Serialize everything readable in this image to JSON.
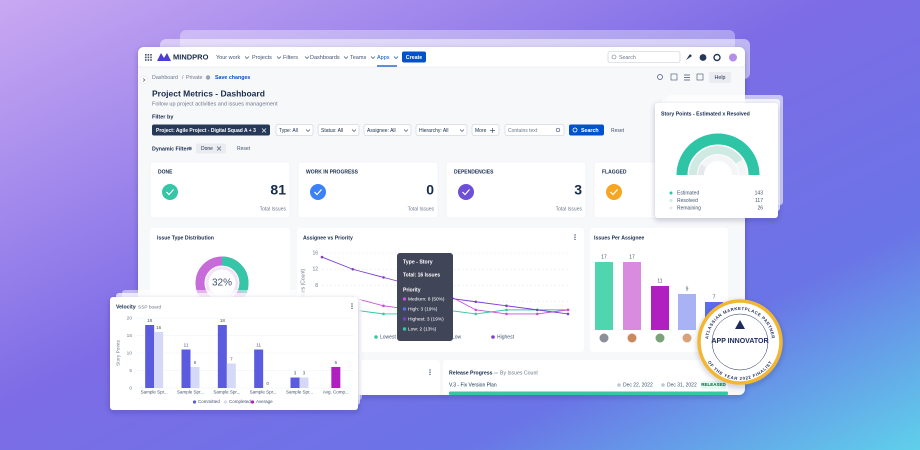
{
  "nav": {
    "brand": "MINDPRO",
    "items": [
      "Your work",
      "Projects",
      "Filters",
      "Dashboards",
      "Teams",
      "Apps"
    ],
    "create": "Create",
    "search": "Search",
    "help": "Help"
  },
  "breadcrumb": {
    "items": [
      "Dashboard",
      "Private"
    ],
    "separator": "/",
    "save": "Save changes"
  },
  "header": {
    "title": "Project Metrics - Dashboard",
    "subtitle": "Follow up project activities and issues management"
  },
  "filters": {
    "label": "Filter by",
    "project": "Project: Agile Project - Digital Squad A + 3",
    "items": [
      "Type: All",
      "Status: All",
      "Assignee: All",
      "Hierarchy: All"
    ],
    "more": "More",
    "text_placeholder": "Contains text",
    "search": "Search",
    "reset": "Reset",
    "dynamic_label": "Dynamic Filter",
    "dynamic_chip": "Done",
    "dynamic_reset": "Reset"
  },
  "stat_cards": [
    {
      "title": "DONE",
      "value": 81,
      "caption": "Total Issues",
      "color": "#36c5a6"
    },
    {
      "title": "WORK IN PROGRESS",
      "value": 0,
      "caption": "Total Issues",
      "color": "#3b82f6"
    },
    {
      "title": "DEPENDENCIES",
      "value": 3,
      "caption": "Total Issues",
      "color": "#6d4fd8"
    },
    {
      "title": "FLAGGED",
      "color": "#f5a623"
    }
  ],
  "issue_type": {
    "title": "Issue Type Distribution",
    "share": {
      "value": 32,
      "label": "32%"
    },
    "color": "#36c5a6",
    "rest_color": "#c66bd8"
  },
  "assignee_priority": {
    "title": "Assignee vs Priority",
    "y_label": "Issues (Count)",
    "ylim": [
      0,
      16
    ],
    "yticks": [
      4,
      8,
      12,
      16
    ],
    "series": [
      {
        "name": "Lowest",
        "color": "#36c5a6",
        "values": [
          1,
          2,
          1,
          1,
          2,
          1,
          2,
          2,
          2
        ]
      },
      {
        "name": "Low",
        "color": "#c84fd8",
        "values": [
          4,
          5,
          3,
          2,
          6,
          2,
          1,
          1,
          2
        ]
      },
      {
        "name": "Highest",
        "color": "#7b3fd0",
        "values": [
          15,
          12,
          10,
          8,
          5,
          4,
          3,
          2,
          1
        ]
      }
    ],
    "tooltip": {
      "title": "Type - Story",
      "total": "Total: 16 Issues",
      "heading": "Priority",
      "rows": [
        "Medium: 8 (50%)",
        "High: 3 (19%)",
        "Highest: 3 (19%)",
        "Low: 2 (13%)"
      ],
      "colors": [
        "#c84fd8",
        "#5b6cf0",
        "#7b3fd0",
        "#36c5a6"
      ]
    }
  },
  "issues_per_assignee": {
    "title": "Issues Per Assignee",
    "values": [
      17,
      17,
      11,
      9,
      7
    ],
    "colors": [
      "#4fd6b0",
      "#d98be0",
      "#b01fc0",
      "#a9b2f4",
      "#5b6cf0"
    ],
    "avatar_colors": [
      "#8a8f99",
      "#c98a5e",
      "#7aa37a",
      "#d9a27a",
      "#6b7280"
    ]
  },
  "release": {
    "title": "Release Progress",
    "subtitle": "By Issues Count",
    "version": "V.3 - Fix Version Plan",
    "start": "Dec 22, 2022",
    "end": "Dec 31, 2022",
    "status": "RELEASED"
  },
  "story_points": {
    "title": "Story Points - Estimated x Resolved",
    "items": [
      {
        "label": "Estimated",
        "value": 143,
        "color": "#2ec4a6"
      },
      {
        "label": "Resolved",
        "value": 117,
        "color": "#cfe9e3"
      },
      {
        "label": "Remaining",
        "value": 26,
        "color": "#e6e8ec"
      }
    ]
  },
  "velocity": {
    "title": "Velocity",
    "board": "SSP board",
    "y_label": "Story Points",
    "ylim": [
      0,
      20
    ],
    "yticks": [
      0,
      5,
      10,
      15,
      20
    ],
    "categories": [
      "Sample Spr...",
      "Sample Spr...",
      "Sample Spr...",
      "Sample Spr...",
      "Sample Spr...",
      "Avg. Comp..."
    ],
    "series": [
      {
        "name": "Committed",
        "color": "#5b5be0",
        "values": [
          18,
          11,
          18,
          11,
          3,
          null
        ]
      },
      {
        "name": "Completed",
        "color": "#d5d9f7",
        "values": [
          16,
          6,
          7,
          0,
          3,
          null
        ]
      },
      {
        "name": "Average",
        "color": "#b01fc0",
        "values": [
          null,
          null,
          null,
          null,
          null,
          6
        ]
      }
    ]
  },
  "badge": {
    "title": "APP INNOVATOR",
    "top": "ATLASSIAN MARKETPLACE PARTNER",
    "bottom": "OF THE YEAR 2022 FINALIST"
  }
}
